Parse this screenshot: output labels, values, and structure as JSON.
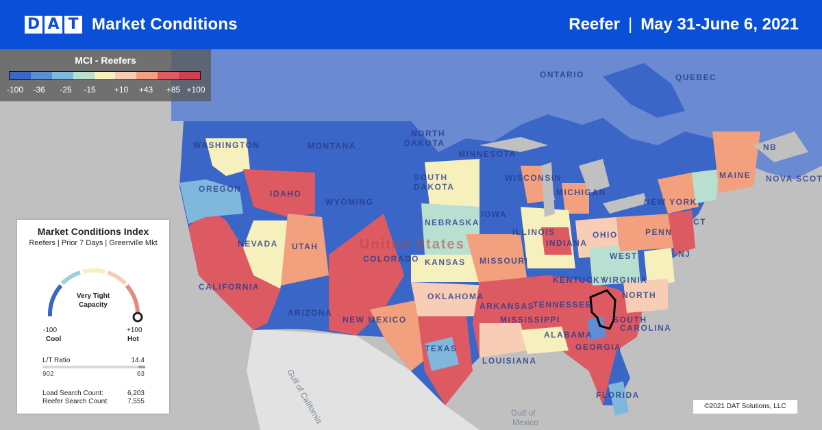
{
  "header": {
    "logo_letters": [
      "D",
      "A",
      "T"
    ],
    "app_title": "Market Conditions",
    "equipment": "Reefer",
    "separator": "|",
    "date_range": "May 31-June 6, 2021"
  },
  "mci_legend": {
    "title": "MCI - Reefers",
    "colors": [
      "#3a66c8",
      "#5d8fd6",
      "#7fb8dc",
      "#b9dfd0",
      "#f5f0bc",
      "#f8cdb5",
      "#f2a07d",
      "#de5a63",
      "#d0404f"
    ],
    "ticks": [
      "-100",
      "-36",
      "-25",
      "-15",
      "+10",
      "+43",
      "+85",
      "+100"
    ]
  },
  "index_card": {
    "title": "Market Conditions Index",
    "subtitle": "Reefers | Prior 7 Days | Greenville Mkt",
    "gauge": {
      "status_line1": "Very Tight",
      "status_line2": "Capacity",
      "min": "-100",
      "max": "+100",
      "min_label": "Cool",
      "max_label": "Hot",
      "level": 0.98
    },
    "lt_ratio": {
      "label": "L/T Ratio",
      "value": "14.4",
      "loads": "902",
      "trucks": "63",
      "truck_share": 0.065
    },
    "counts": [
      {
        "label": "Load Search Count:",
        "value": "6,203"
      },
      {
        "label": "Reefer Search Count:",
        "value": "7,555"
      }
    ]
  },
  "map": {
    "colors": {
      "cool": "#3a66c8",
      "cold": "#5d8fd6",
      "mild_cool": "#7fb8dc",
      "neutral": "#f5f0bc",
      "warm": "#f2a07d",
      "hot": "#de5a63",
      "canada": "#6a8ad2",
      "land": "#d4d4d4",
      "water": "#c0c0c0"
    },
    "labels": [
      "ONTARIO",
      "QUEBEC",
      "NORTH",
      "DAKOTA",
      "WASHINGTON",
      "MONTANA",
      "MINNESOTA",
      "OREGON",
      "IDAHO",
      "WYOMING",
      "SOUTH",
      "DAKOTA",
      "WISCONSIN",
      "MICHIGAN",
      "NEW YORK",
      "MAINE",
      "NB",
      "NOVA SCOTIA",
      "NEVADA",
      "UTAH",
      "COLORADO",
      "NEBRASKA",
      "IOWA",
      "ILLINOIS",
      "INDIANA",
      "OHIO",
      "PENN",
      "CT",
      "NJ",
      "WEST",
      "VIRGINIA",
      "KANSAS",
      "MISSOURI",
      "KENTUCKY",
      "NORTH",
      "CALIFORNIA",
      "ARIZONA",
      "NEW MEXICO",
      "OKLAHOMA",
      "ARKANSAS",
      "TENNESSEE",
      "SOUTH",
      "CAROLINA",
      "TEXAS",
      "MISSISSIPPI",
      "ALABAMA",
      "GEORGIA",
      "LOUISIANA",
      "FLORIDA",
      "United States"
    ],
    "water_labels": [
      "Gulf of California",
      "Gulf of",
      "Mexico"
    ]
  },
  "copyright": "©2021 DAT Solutions, LLC"
}
